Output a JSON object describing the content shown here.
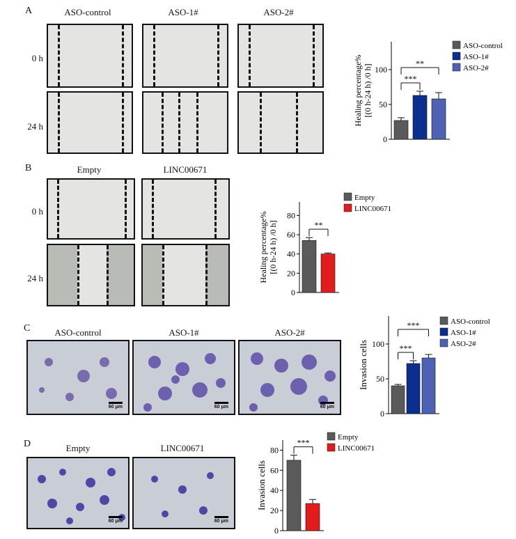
{
  "panels": {
    "A": {
      "letter": "A",
      "columns": [
        "ASO-control",
        "ASO-1#",
        "ASO-2#"
      ],
      "rows": [
        "0 h",
        "24 h"
      ]
    },
    "B": {
      "letter": "B",
      "columns": [
        "Empty",
        "LINC00671"
      ],
      "rows": [
        "0 h",
        "24 h"
      ]
    },
    "C": {
      "letter": "C",
      "columns": [
        "ASO-control",
        "ASO-1#",
        "ASO-2#"
      ],
      "scale": "60 μm"
    },
    "D": {
      "letter": "D",
      "columns": [
        "Empty",
        "LINC00671"
      ],
      "scale": "60 μm"
    }
  },
  "colors": {
    "control": "#5a5a5a",
    "aso1": "#0b2f8f",
    "aso2": "#4d62b4",
    "empty": "#5a5a5a",
    "linc": "#e21c1c"
  },
  "chart_data": [
    {
      "id": "A",
      "type": "bar",
      "categories": [
        "ASO-control",
        "ASO-1#",
        "ASO-2#"
      ],
      "values": [
        27,
        63,
        58
      ],
      "errors": [
        4,
        6,
        9
      ],
      "ylabel_line1": "Healing percentage%",
      "ylabel_line2": "[(0 h-24 h) /0 h]",
      "ylim": [
        0,
        140
      ],
      "yticks": [
        0,
        50,
        100
      ],
      "legend": [
        "ASO-control",
        "ASO-1#",
        "ASO-2#"
      ],
      "legend_position": "top-right",
      "significance": [
        {
          "from": 0,
          "to": 1,
          "label": "***"
        },
        {
          "from": 0,
          "to": 2,
          "label": "**"
        }
      ]
    },
    {
      "id": "B",
      "type": "bar",
      "categories": [
        "Empty",
        "LINC00671"
      ],
      "values": [
        54,
        40
      ],
      "errors": [
        3,
        1
      ],
      "ylabel_line1": "Healing percentage%",
      "ylabel_line2": "[(0 h-24 h) /0 h]",
      "ylim": [
        0,
        94
      ],
      "yticks": [
        0,
        20,
        40,
        60,
        80
      ],
      "legend": [
        "Empty",
        "LINC00671"
      ],
      "legend_position": "top-right",
      "significance": [
        {
          "from": 0,
          "to": 1,
          "label": "**"
        }
      ]
    },
    {
      "id": "C",
      "type": "bar",
      "categories": [
        "ASO-control",
        "ASO-1#",
        "ASO-2#"
      ],
      "values": [
        40,
        72,
        80
      ],
      "errors": [
        2,
        4,
        5
      ],
      "ylabel_line1": "Invasion cells",
      "ylabel_line2": "",
      "ylim": [
        0,
        140
      ],
      "yticks": [
        0,
        50,
        100
      ],
      "legend": [
        "ASO-control",
        "ASO-1#",
        "ASO-2#"
      ],
      "legend_position": "top-right",
      "significance": [
        {
          "from": 0,
          "to": 1,
          "label": "***"
        },
        {
          "from": 0,
          "to": 2,
          "label": "***"
        }
      ]
    },
    {
      "id": "D",
      "type": "bar",
      "categories": [
        "Empty",
        "LINC00671"
      ],
      "values": [
        70,
        27
      ],
      "errors": [
        5,
        4
      ],
      "ylabel_line1": "Invasion cells",
      "ylabel_line2": "",
      "ylim": [
        0,
        90
      ],
      "yticks": [
        0,
        20,
        40,
        60,
        80
      ],
      "legend": [
        "Empty",
        "LINC00671"
      ],
      "legend_position": "top-right",
      "significance": [
        {
          "from": 0,
          "to": 1,
          "label": "***"
        }
      ]
    }
  ]
}
